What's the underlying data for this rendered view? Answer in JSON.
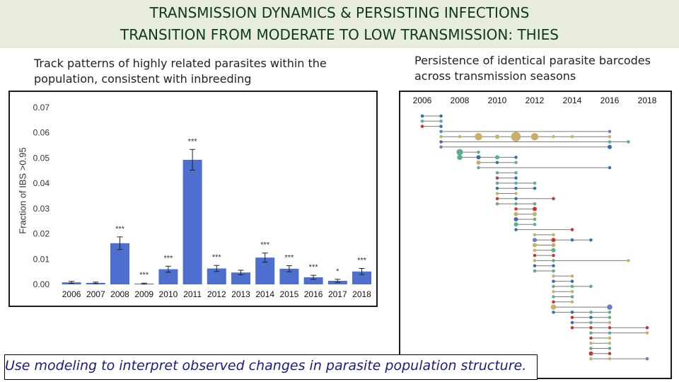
{
  "header": {
    "title_line1": "TRANSMISSION DYNAMICS & PERSISTING INFECTIONS",
    "title_line2": "TRANSITION FROM MODERATE TO LOW TRANSMISSION: THIES"
  },
  "left_caption": "Track patterns of highly related parasites within the population, consistent with inbreeding",
  "right_caption": "Persistence of identical parasite barcodes across transmission seasons",
  "footer": "Use modeling to interpret observed changes in parasite population structure.",
  "chart_data": [
    {
      "type": "bar",
      "title": "",
      "ylabel": "Fraction of IBS >0.95",
      "xlabel": "",
      "ylim": [
        0,
        0.07
      ],
      "ytick_labels": [
        "0.00",
        "0.01",
        "0.02",
        "0.03",
        "0.04",
        "0.05",
        "0.06",
        "0.07"
      ],
      "categories": [
        "2006",
        "2007",
        "2008",
        "2009",
        "2010",
        "2011",
        "2012",
        "2013",
        "2014",
        "2015",
        "2016",
        "2017",
        "2018"
      ],
      "values": [
        0.0008,
        0.0006,
        0.0163,
        0.0003,
        0.006,
        0.0493,
        0.0063,
        0.0047,
        0.0106,
        0.0062,
        0.0028,
        0.0014,
        0.0051
      ],
      "errors": [
        0.0004,
        0.0003,
        0.0025,
        0.0002,
        0.0012,
        0.0041,
        0.0012,
        0.0009,
        0.0018,
        0.0012,
        0.0008,
        0.0006,
        0.0012
      ],
      "annotations": [
        "",
        "",
        "***",
        "***",
        "***",
        "***",
        "***",
        "",
        "***",
        "***",
        "***",
        "*",
        "***"
      ],
      "bar_color": "#4f6fd0"
    },
    {
      "type": "scatter",
      "title": "",
      "x_ticks": [
        "2006",
        "2008",
        "2010",
        "2012",
        "2014",
        "2016",
        "2018"
      ],
      "xlim": [
        2005.6,
        2018.4
      ],
      "rows": [
        {
          "points": [
            [
              2006,
              3,
              "#3a6ea5"
            ],
            [
              2007,
              3,
              "#3a6ea5"
            ]
          ]
        },
        {
          "points": [
            [
              2006,
              3,
              "#5cae8c"
            ],
            [
              2007,
              3,
              "#5cae8c"
            ]
          ]
        },
        {
          "points": [
            [
              2006,
              3,
              "#cc3333"
            ],
            [
              2007,
              3,
              "#3a6ea5"
            ]
          ]
        },
        {
          "points": [
            [
              2007,
              3,
              "#6c7fc0"
            ],
            [
              2016,
              3,
              "#6c7fc0"
            ]
          ]
        },
        {
          "points": [
            [
              2007,
              3,
              "#c9b06a"
            ],
            [
              2008,
              3,
              "#c9b06a"
            ],
            [
              2009,
              7,
              "#c9b06a"
            ],
            [
              2010,
              4,
              "#c9b06a"
            ],
            [
              2011,
              9,
              "#c9b06a"
            ],
            [
              2012,
              7,
              "#c9b06a"
            ],
            [
              2013,
              3,
              "#c9b06a"
            ],
            [
              2014,
              3,
              "#c9b06a"
            ],
            [
              2016,
              3,
              "#c9b06a"
            ]
          ]
        },
        {
          "points": [
            [
              2007,
              3,
              "#3a6ea5"
            ],
            [
              2016,
              3,
              "#5cae8c"
            ],
            [
              2017,
              3,
              "#5cae8c"
            ]
          ]
        },
        {
          "points": [
            [
              2007,
              3,
              "#6c7fc0"
            ],
            [
              2016,
              4,
              "#3a6ea5"
            ]
          ]
        },
        {
          "points": [
            [
              2008,
              6,
              "#5cae8c"
            ],
            [
              2009,
              3,
              "#5cae8c"
            ]
          ]
        },
        {
          "points": [
            [
              2008,
              5,
              "#5cae8c"
            ],
            [
              2009,
              4,
              "#3a6ea5"
            ],
            [
              2010,
              4,
              "#5cae8c"
            ],
            [
              2011,
              3,
              "#3a6ea5"
            ]
          ]
        },
        {
          "points": [
            [
              2009,
              4,
              "#c9b06a"
            ],
            [
              2010,
              3,
              "#3a6ea5"
            ],
            [
              2011,
              3,
              "#5cae8c"
            ]
          ]
        },
        {
          "points": [
            [
              2009,
              3,
              "#5cae8c"
            ],
            [
              2016,
              3,
              "#3a6ea5"
            ]
          ]
        },
        {
          "points": [
            [
              2010,
              3,
              "#5cae8c"
            ],
            [
              2011,
              3,
              "#5cae8c"
            ]
          ]
        },
        {
          "points": [
            [
              2010,
              3,
              "#cc3333"
            ],
            [
              2011,
              3,
              "#3a6ea5"
            ]
          ]
        },
        {
          "points": [
            [
              2010,
              3,
              "#5cae8c"
            ],
            [
              2011,
              3,
              "#5cae8c"
            ],
            [
              2012,
              3,
              "#5cae8c"
            ]
          ]
        },
        {
          "points": [
            [
              2010,
              3,
              "#3a6ea5"
            ],
            [
              2011,
              3,
              "#3a6ea5"
            ],
            [
              2012,
              3,
              "#3a6ea5"
            ]
          ]
        },
        {
          "points": [
            [
              2010,
              3,
              "#c9b06a"
            ],
            [
              2011,
              3,
              "#c9b06a"
            ]
          ]
        },
        {
          "points": [
            [
              2010,
              3,
              "#cc3333"
            ],
            [
              2011,
              3,
              "#3a6ea5"
            ],
            [
              2013,
              3,
              "#cc3333"
            ]
          ]
        },
        {
          "points": [
            [
              2010,
              3,
              "#5cae8c"
            ],
            [
              2011,
              3,
              "#5cae8c"
            ],
            [
              2012,
              3,
              "#5cae8c"
            ]
          ]
        },
        {
          "points": [
            [
              2011,
              3,
              "#cc3333"
            ],
            [
              2012,
              4,
              "#cc3333"
            ]
          ]
        },
        {
          "points": [
            [
              2011,
              4,
              "#c9b06a"
            ],
            [
              2012,
              4,
              "#c9b06a"
            ]
          ]
        },
        {
          "points": [
            [
              2011,
              4,
              "#3a6ea5"
            ],
            [
              2012,
              3,
              "#5cae8c"
            ]
          ]
        },
        {
          "points": [
            [
              2011,
              4,
              "#5cae8c"
            ],
            [
              2012,
              3,
              "#5cae8c"
            ]
          ]
        },
        {
          "points": [
            [
              2011,
              3,
              "#3a6ea5"
            ],
            [
              2014,
              3,
              "#cc3333"
            ]
          ]
        },
        {
          "points": [
            [
              2012,
              3,
              "#c9b06a"
            ],
            [
              2013,
              3,
              "#c9b06a"
            ]
          ]
        },
        {
          "points": [
            [
              2012,
              4,
              "#6c7fc0"
            ],
            [
              2013,
              4,
              "#cc3333"
            ],
            [
              2014,
              3,
              "#3a6ea5"
            ],
            [
              2015,
              3,
              "#3a6ea5"
            ]
          ]
        },
        {
          "points": [
            [
              2012,
              4,
              "#c9b06a"
            ],
            [
              2013,
              4,
              "#c9b06a"
            ]
          ]
        },
        {
          "points": [
            [
              2012,
              3,
              "#c9b06a"
            ],
            [
              2013,
              4,
              "#5cae8c"
            ]
          ]
        },
        {
          "points": [
            [
              2012,
              3,
              "#cc3333"
            ],
            [
              2013,
              3,
              "#cc3333"
            ]
          ]
        },
        {
          "points": [
            [
              2012,
              3,
              "#c9b06a"
            ],
            [
              2013,
              3,
              "#5cae8c"
            ],
            [
              2017,
              3,
              "#c9b06a"
            ]
          ]
        },
        {
          "points": [
            [
              2012,
              3,
              "#3a6ea5"
            ],
            [
              2013,
              3,
              "#3a6ea5"
            ]
          ]
        },
        {
          "points": [
            [
              2012,
              3,
              "#5cae8c"
            ],
            [
              2013,
              3,
              "#5cae8c"
            ]
          ]
        },
        {
          "points": [
            [
              2013,
              3,
              "#c9b06a"
            ],
            [
              2014,
              3,
              "#c9b06a"
            ]
          ]
        },
        {
          "points": [
            [
              2013,
              3,
              "#3a6ea5"
            ],
            [
              2014,
              3,
              "#3a6ea5"
            ]
          ]
        },
        {
          "points": [
            [
              2013,
              3,
              "#5cae8c"
            ],
            [
              2014,
              3,
              "#5cae8c"
            ],
            [
              2015,
              3,
              "#5cae8c"
            ]
          ]
        },
        {
          "points": [
            [
              2013,
              3,
              "#c9b06a"
            ],
            [
              2014,
              3,
              "#c9b06a"
            ]
          ]
        },
        {
          "points": [
            [
              2013,
              3,
              "#5cae8c"
            ],
            [
              2014,
              3,
              "#5cae8c"
            ]
          ]
        },
        {
          "points": [
            [
              2013,
              3,
              "#cc3333"
            ],
            [
              2014,
              3,
              "#c9b06a"
            ]
          ]
        },
        {
          "points": [
            [
              2013,
              5,
              "#c9b06a"
            ],
            [
              2016,
              5,
              "#6c7fc0"
            ]
          ]
        },
        {
          "points": [
            [
              2013,
              3,
              "#3a6ea5"
            ],
            [
              2014,
              3,
              "#3a6ea5"
            ],
            [
              2015,
              3,
              "#5cae8c"
            ],
            [
              2016,
              3,
              "#5cae8c"
            ]
          ]
        },
        {
          "points": [
            [
              2014,
              3,
              "#cc3333"
            ],
            [
              2015,
              3,
              "#3a6ea5"
            ],
            [
              2016,
              3,
              "#5cae8c"
            ]
          ]
        },
        {
          "points": [
            [
              2014,
              3,
              "#3a6ea5"
            ],
            [
              2015,
              3,
              "#5cae8c"
            ],
            [
              2016,
              3,
              "#c9b06a"
            ]
          ]
        },
        {
          "points": [
            [
              2014,
              3,
              "#cc3333"
            ],
            [
              2015,
              3,
              "#cc3333"
            ],
            [
              2016,
              3,
              "#cc3333"
            ],
            [
              2018,
              3,
              "#cc3333"
            ]
          ]
        },
        {
          "points": [
            [
              2015,
              3,
              "#5cae8c"
            ],
            [
              2016,
              3,
              "#5cae8c"
            ],
            [
              2018,
              3,
              "#c9b06a"
            ]
          ]
        },
        {
          "points": [
            [
              2015,
              3,
              "#cc3333"
            ],
            [
              2016,
              3,
              "#c9b06a"
            ]
          ]
        },
        {
          "points": [
            [
              2015,
              3,
              "#c9b06a"
            ],
            [
              2016,
              3,
              "#c9b06a"
            ]
          ]
        },
        {
          "points": [
            [
              2015,
              3,
              "#5cae8c"
            ],
            [
              2016,
              3,
              "#5cae8c"
            ]
          ]
        },
        {
          "points": [
            [
              2015,
              4,
              "#cc3333"
            ],
            [
              2016,
              3,
              "#cc3333"
            ]
          ]
        },
        {
          "points": [
            [
              2015,
              3,
              "#c9b06a"
            ],
            [
              2016,
              3,
              "#c9b06a"
            ],
            [
              2018,
              3,
              "#6c7fc0"
            ]
          ]
        }
      ]
    }
  ]
}
